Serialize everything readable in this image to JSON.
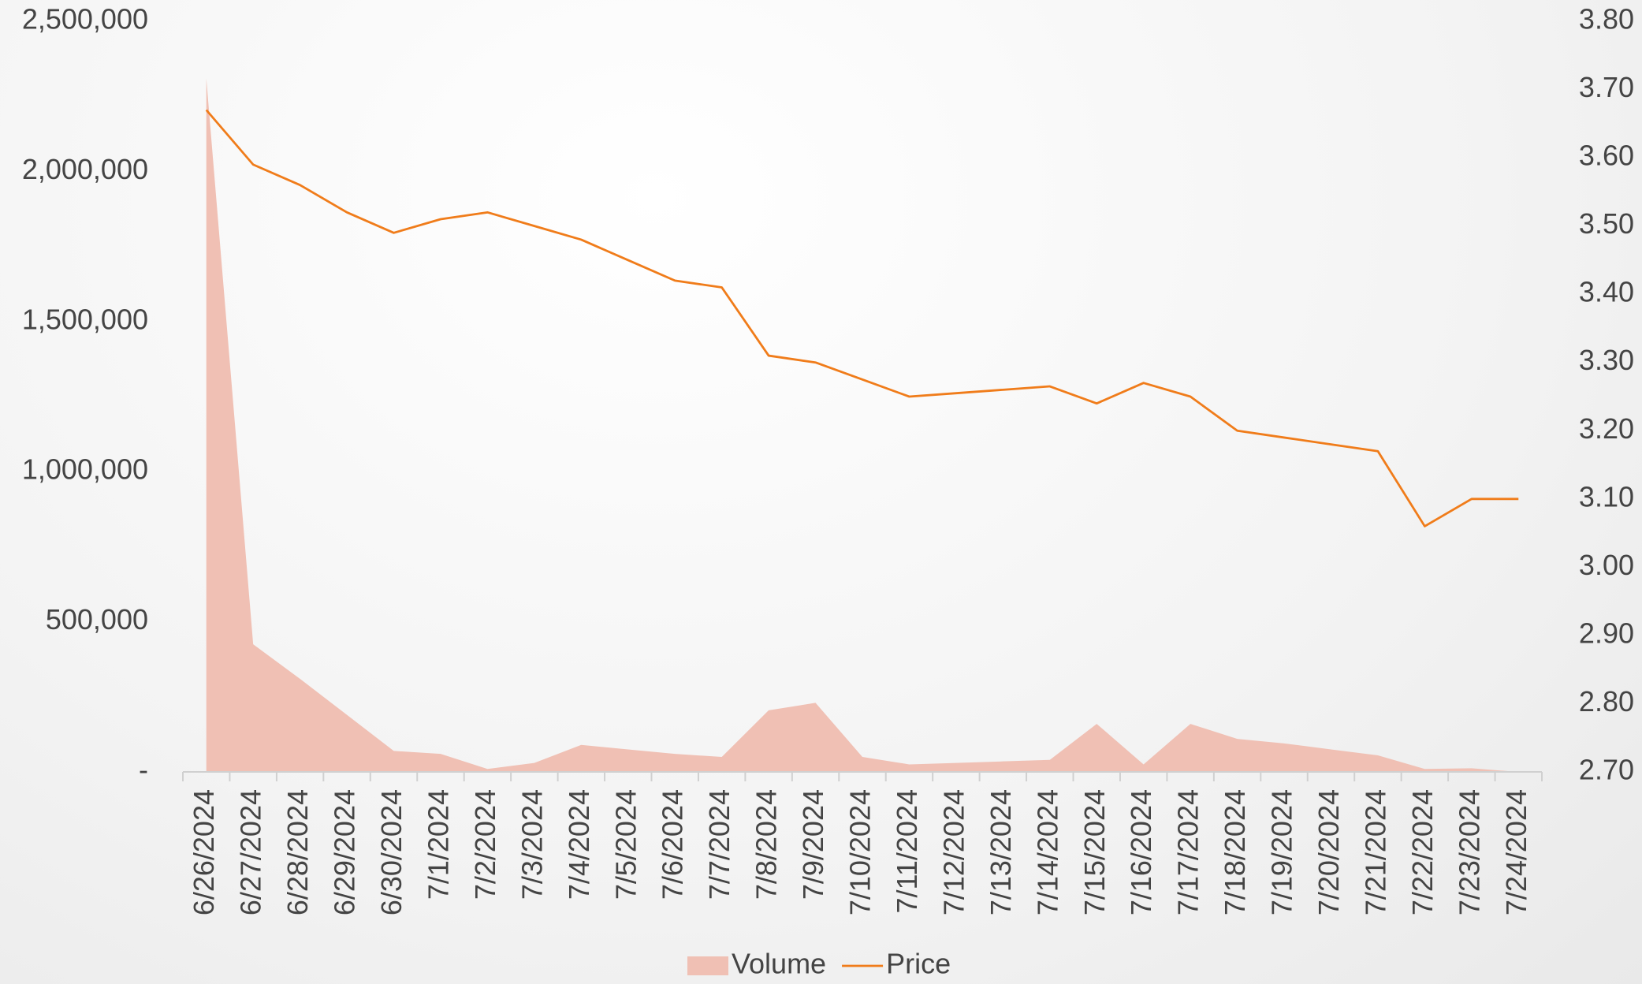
{
  "chart_data": {
    "type": "area-line",
    "categories": [
      "6/26/2024",
      "6/27/2024",
      "6/28/2024",
      "6/29/2024",
      "6/30/2024",
      "7/1/2024",
      "7/2/2024",
      "7/3/2024",
      "7/4/2024",
      "7/5/2024",
      "7/6/2024",
      "7/7/2024",
      "7/8/2024",
      "7/9/2024",
      "7/10/2024",
      "7/11/2024",
      "7/12/2024",
      "7/13/2024",
      "7/14/2024",
      "7/15/2024",
      "7/16/2024",
      "7/17/2024",
      "7/18/2024",
      "7/19/2024",
      "7/20/2024",
      "7/21/2024",
      "7/22/2024",
      "7/23/2024",
      "7/24/2024"
    ],
    "series": [
      {
        "name": "Volume",
        "type": "area",
        "color": "#f0c0b4",
        "values": [
          2310000,
          425000,
          310000,
          190000,
          70000,
          60000,
          10000,
          30000,
          90000,
          75000,
          60000,
          50000,
          205000,
          230000,
          50000,
          25000,
          30000,
          35000,
          40000,
          160000,
          25000,
          160000,
          110000,
          95000,
          75000,
          55000,
          10000,
          12000,
          0
        ]
      },
      {
        "name": "Price",
        "type": "line",
        "axis": "y2",
        "color": "#f07c1a",
        "values": [
          3.67,
          3.59,
          3.56,
          3.52,
          3.49,
          3.51,
          3.52,
          3.5,
          3.48,
          3.45,
          3.42,
          3.41,
          3.31,
          3.3,
          3.275,
          3.25,
          3.255,
          3.26,
          3.265,
          3.24,
          3.27,
          3.25,
          3.2,
          3.19,
          3.18,
          3.17,
          3.06,
          3.1,
          3.1
        ]
      }
    ],
    "ylim": [
      0,
      2500000
    ],
    "yticks": [
      {
        "value": 0,
        "label": "-"
      },
      {
        "value": 500000,
        "label": "500,000"
      },
      {
        "value": 1000000,
        "label": "1,000,000"
      },
      {
        "value": 1500000,
        "label": "1,500,000"
      },
      {
        "value": 2000000,
        "label": "2,000,000"
      },
      {
        "value": 2500000,
        "label": "2,500,000"
      }
    ],
    "y2lim": [
      2.7,
      3.8
    ],
    "y2ticks": [
      {
        "value": 2.7,
        "label": "2.70"
      },
      {
        "value": 2.8,
        "label": "2.80"
      },
      {
        "value": 2.9,
        "label": "2.90"
      },
      {
        "value": 3.0,
        "label": "3.00"
      },
      {
        "value": 3.1,
        "label": "3.10"
      },
      {
        "value": 3.2,
        "label": "3.20"
      },
      {
        "value": 3.3,
        "label": "3.30"
      },
      {
        "value": 3.4,
        "label": "3.40"
      },
      {
        "value": 3.5,
        "label": "3.50"
      },
      {
        "value": 3.6,
        "label": "3.60"
      },
      {
        "value": 3.7,
        "label": "3.70"
      },
      {
        "value": 3.8,
        "label": "3.80"
      }
    ],
    "legend": "bottom"
  }
}
